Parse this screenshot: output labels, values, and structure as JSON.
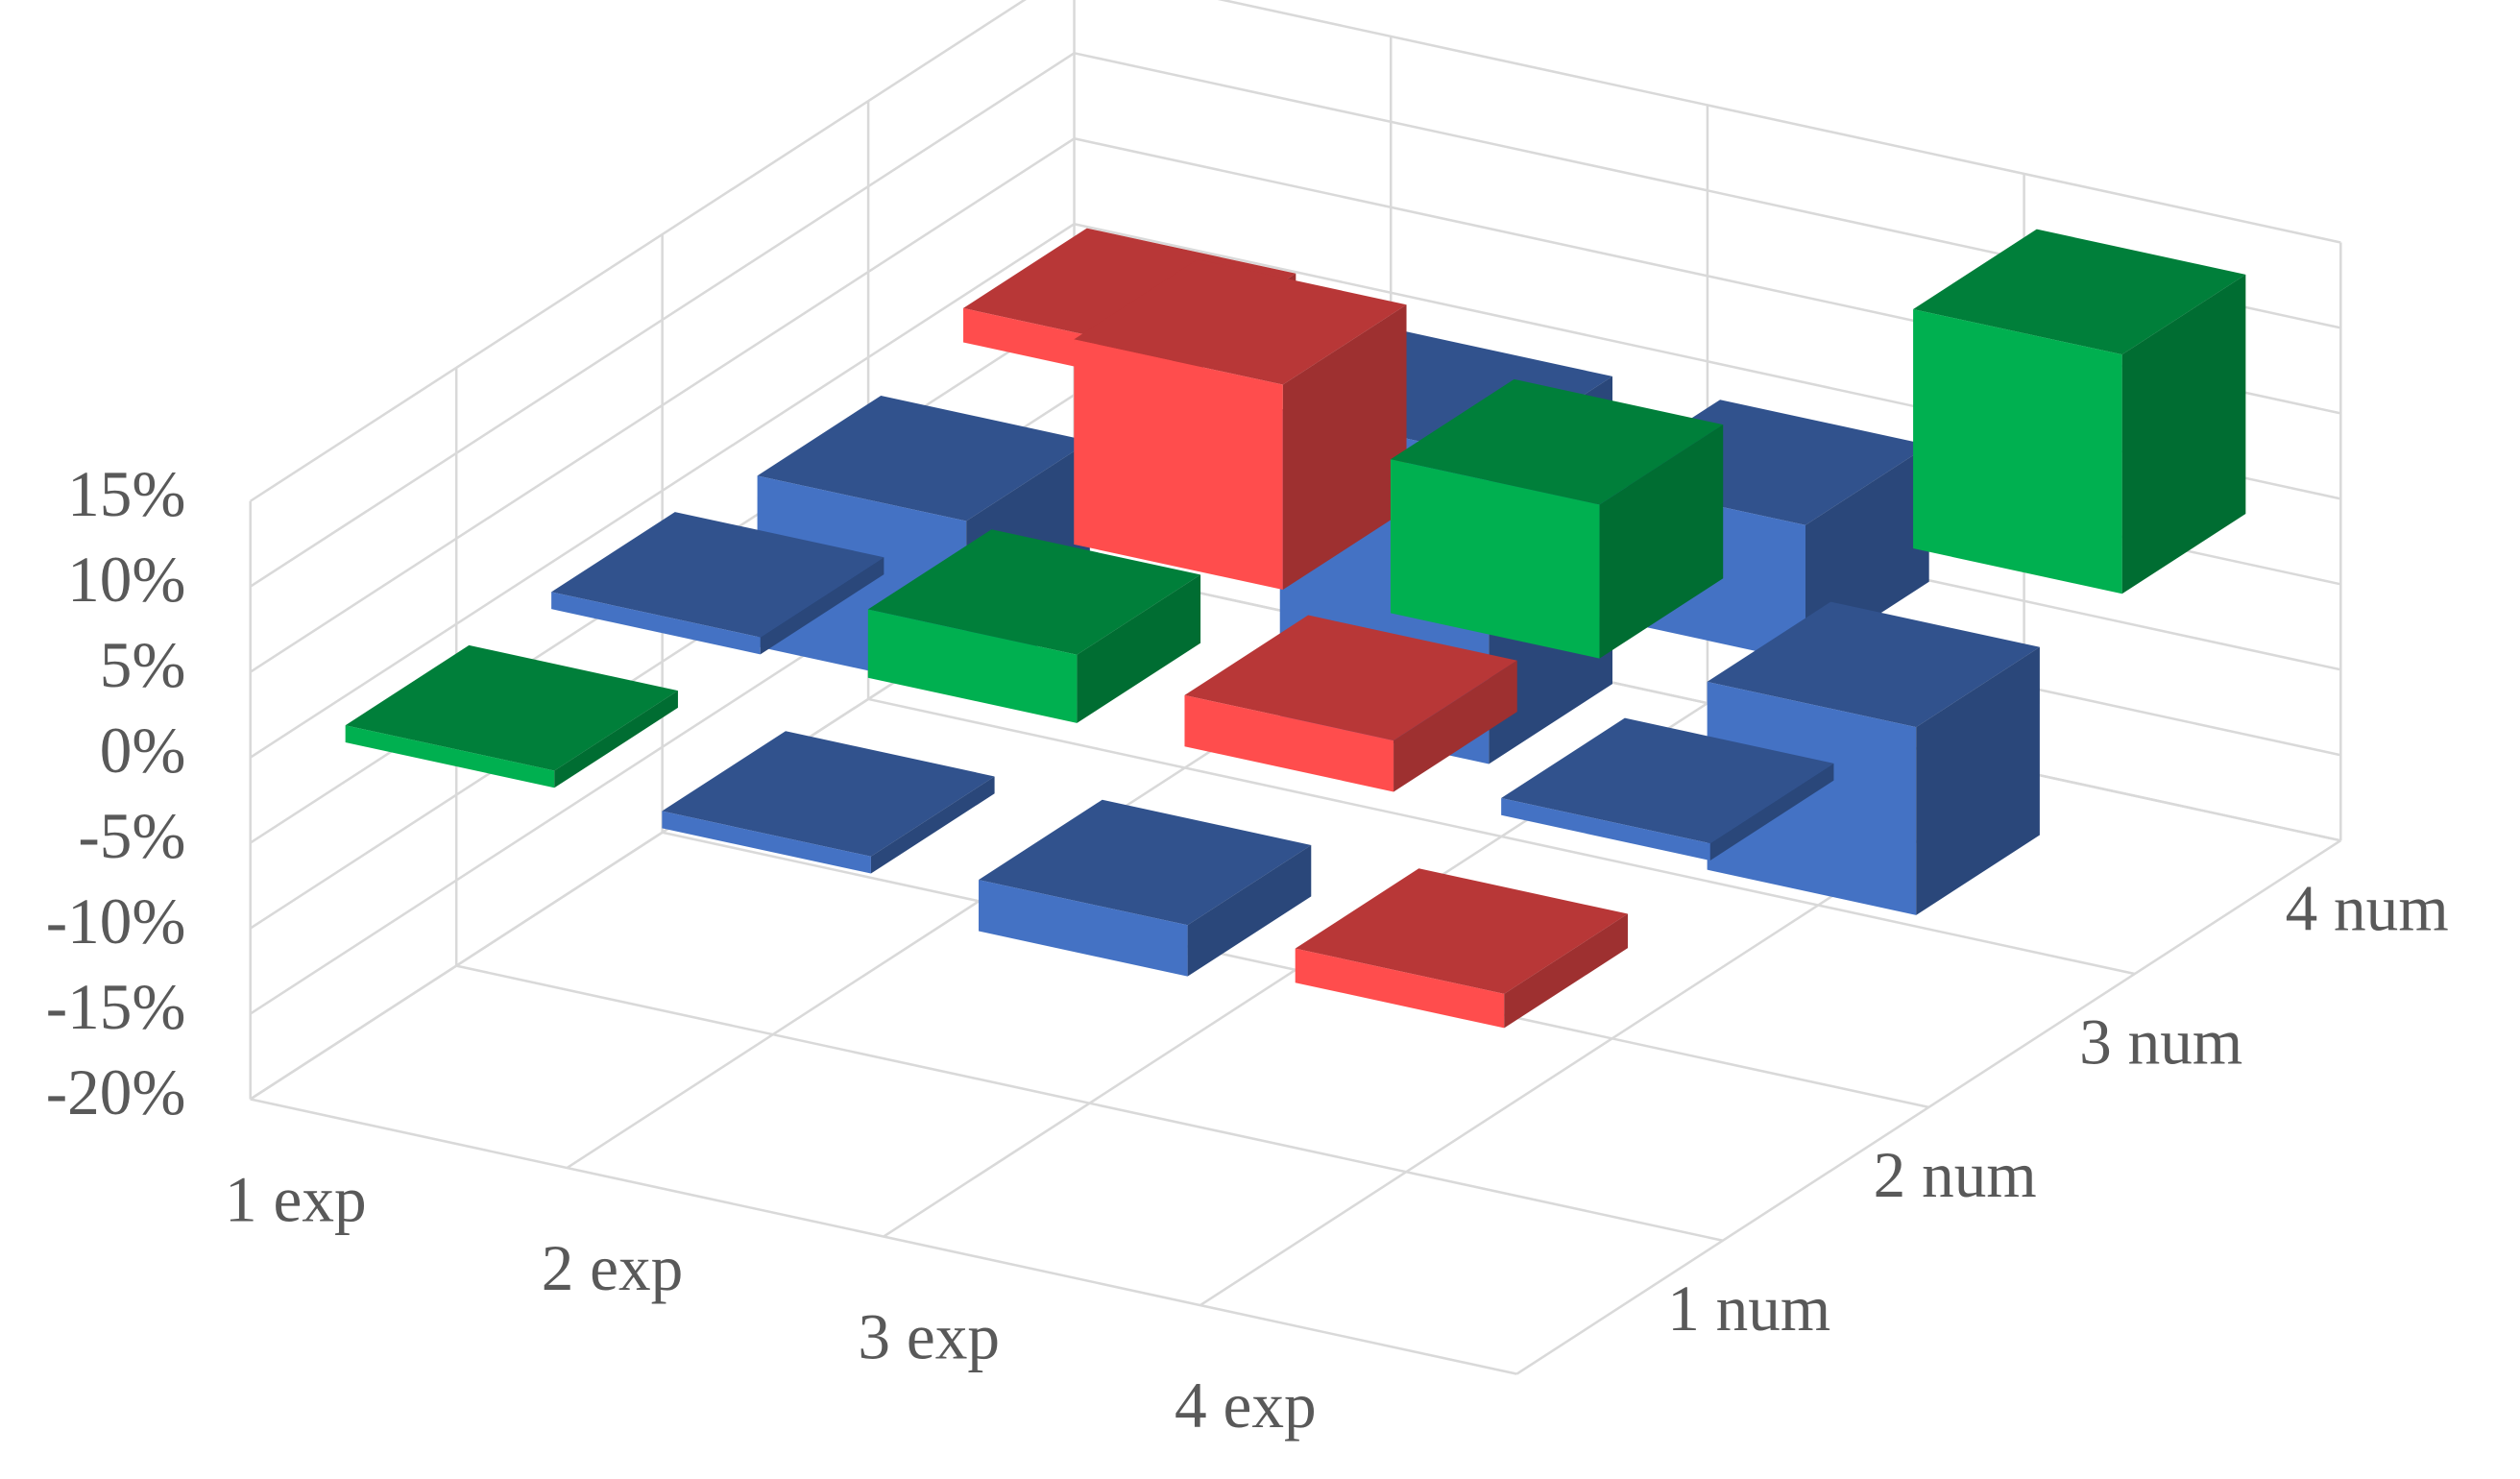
{
  "chart_data": {
    "type": "bar3d",
    "categories": [
      "1 exp",
      "2 exp",
      "3 exp",
      "4 exp"
    ],
    "depth_categories": [
      "1 num",
      "2 num",
      "3 num",
      "4 num"
    ],
    "values": [
      [
        1,
        -1,
        -3,
        -2
      ],
      [
        1,
        4,
        3,
        1
      ],
      [
        -10,
        12,
        9,
        -11
      ],
      [
        2,
        -18,
        -8,
        14
      ]
    ],
    "colors": [
      [
        "#00b050",
        "#4472c4",
        "#4472c4",
        "#ff4d4d"
      ],
      [
        "#4472c4",
        "#00b050",
        "#ff4d4d",
        "#4472c4"
      ],
      [
        "#4472c4",
        "#ff4d4d",
        "#00b050",
        "#4472c4"
      ],
      [
        "#ff4d4d",
        "#4472c4",
        "#4472c4",
        "#00b050"
      ]
    ],
    "ylim": [
      -20,
      15
    ],
    "yticks": [
      {
        "value": -20,
        "label": "-20%"
      },
      {
        "value": -15,
        "label": "-15%"
      },
      {
        "value": -10,
        "label": "-10%"
      },
      {
        "value": -5,
        "label": "-5%"
      },
      {
        "value": 0,
        "label": "0%"
      },
      {
        "value": 5,
        "label": "5%"
      },
      {
        "value": 10,
        "label": "10%"
      },
      {
        "value": 15,
        "label": "15%"
      }
    ],
    "grid": true
  }
}
